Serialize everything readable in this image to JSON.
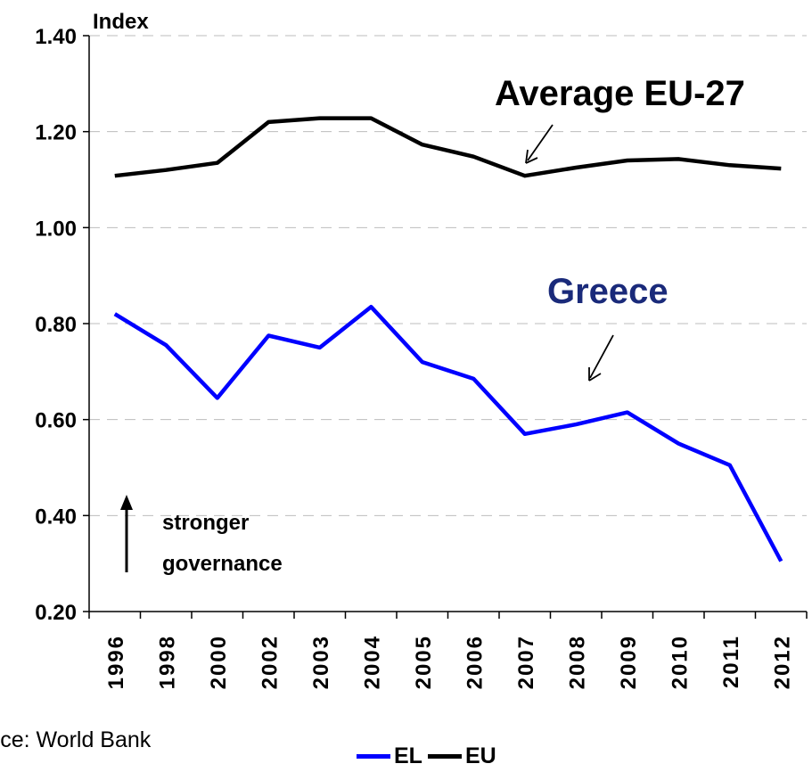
{
  "chart_data": {
    "type": "line",
    "ylabel": "Index",
    "ylim": [
      0.2,
      1.4
    ],
    "yticks": [
      "0.20",
      "0.40",
      "0.60",
      "0.80",
      "1.00",
      "1.20",
      "1.40"
    ],
    "grid": "horizontal dashed",
    "categories": [
      "1996",
      "1998",
      "2000",
      "2002",
      "2003",
      "2004",
      "2005",
      "2006",
      "2007",
      "2008",
      "2009",
      "2010",
      "2011",
      "2012"
    ],
    "series": [
      {
        "name": "EL",
        "color": "#0000ff",
        "values": [
          0.82,
          0.755,
          0.645,
          0.775,
          0.75,
          0.835,
          0.72,
          0.685,
          0.57,
          0.59,
          0.615,
          0.55,
          0.505,
          0.305
        ]
      },
      {
        "name": "EU",
        "color": "#000000",
        "values": [
          1.108,
          1.12,
          1.135,
          1.22,
          1.228,
          1.228,
          1.173,
          1.148,
          1.108,
          1.125,
          1.14,
          1.143,
          1.13,
          1.123
        ]
      }
    ],
    "annotations": {
      "eu": "Average EU-27",
      "el": "Greece",
      "arrow_line1": "stronger",
      "arrow_line2": "governance"
    },
    "source": "urce: World Bank",
    "legend_position": "bottom-center"
  }
}
